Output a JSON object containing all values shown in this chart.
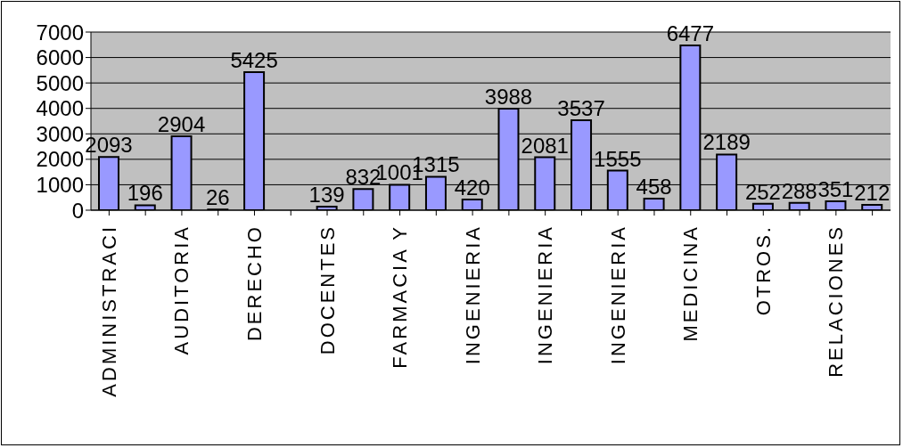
{
  "chart_data": {
    "type": "bar",
    "categories": [
      "ADMINISTRACI",
      null,
      "AUDITORIA",
      null,
      "DERECHO",
      null,
      "DOCENTES",
      null,
      "FARMACIA Y",
      null,
      "INGENIERIA",
      null,
      "INGENIERIA",
      null,
      "INGENIERIA",
      null,
      "MEDICINA",
      null,
      "OTROS.",
      null,
      "RELACIONES",
      null
    ],
    "values": [
      2093,
      196,
      2904,
      26,
      5425,
      null,
      139,
      832,
      1001,
      1315,
      420,
      3988,
      2081,
      3537,
      1555,
      458,
      6477,
      2189,
      252,
      288,
      351,
      212
    ],
    "color": "#9999ff",
    "ylim": [
      0,
      7000
    ],
    "yticks": [
      0,
      1000,
      2000,
      3000,
      4000,
      5000,
      6000,
      7000
    ],
    "grid": "y",
    "data_labels": true
  }
}
